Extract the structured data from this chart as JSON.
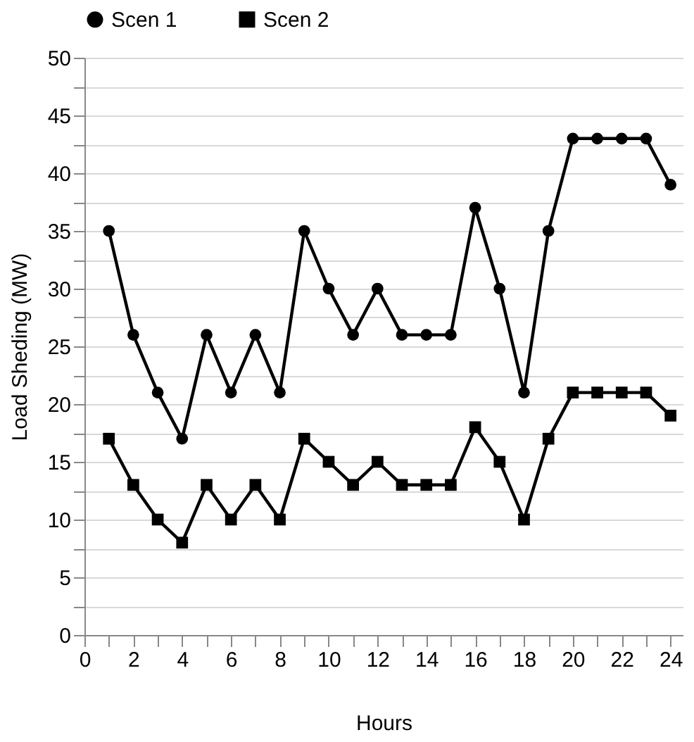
{
  "chart_data": {
    "type": "line",
    "xlabel": "Hours",
    "ylabel": "Load  Sheding (MW)",
    "x": [
      1,
      2,
      3,
      4,
      5,
      6,
      7,
      8,
      9,
      10,
      11,
      12,
      13,
      14,
      15,
      16,
      17,
      18,
      19,
      20,
      21,
      22,
      23,
      24
    ],
    "series": [
      {
        "name": "Scen 1",
        "color": "#000000",
        "marker": "circle",
        "values": [
          35,
          26,
          21,
          17,
          26,
          21,
          26,
          21,
          35,
          30,
          26,
          30,
          26,
          26,
          26,
          37,
          30,
          21,
          35,
          43,
          43,
          43,
          43,
          39
        ]
      },
      {
        "name": "Scen 2",
        "color": "#000000",
        "marker": "square",
        "values": [
          17,
          13,
          10,
          8,
          13,
          10,
          13,
          10,
          17,
          15,
          13,
          15,
          13,
          13,
          13,
          18,
          15,
          10,
          17,
          21,
          21,
          21,
          21,
          19
        ]
      }
    ],
    "xlim": [
      0,
      24.5
    ],
    "xticks": [
      0,
      {
        "value": 1,
        "label": null
      },
      2,
      {
        "value": 3,
        "label": null
      },
      4,
      {
        "value": 5,
        "label": null
      },
      6,
      {
        "value": 7,
        "label": null
      },
      8,
      {
        "value": 9,
        "label": null
      },
      10,
      {
        "value": 11,
        "label": null
      },
      12,
      {
        "value": 13,
        "label": null
      },
      14,
      {
        "value": 15,
        "label": null
      },
      16,
      {
        "value": 17,
        "label": null
      },
      18,
      {
        "value": 19,
        "label": null
      },
      20,
      {
        "value": 21,
        "label": null
      },
      22,
      {
        "value": 23,
        "label": null
      },
      24
    ],
    "ylim": [
      0,
      50
    ],
    "yticks": [
      0,
      {
        "value": 2.5,
        "label": null
      },
      5,
      {
        "value": 7.5,
        "label": null
      },
      10,
      {
        "value": 12.5,
        "label": null
      },
      15,
      {
        "value": 17.5,
        "label": null
      },
      20,
      {
        "value": 22.5,
        "label": null
      },
      25,
      {
        "value": 27.5,
        "label": null
      },
      30,
      {
        "value": 32.5,
        "label": null
      },
      35,
      {
        "value": 37.5,
        "label": null
      },
      40,
      {
        "value": 42.5,
        "label": null
      },
      45,
      {
        "value": 47.5,
        "label": null
      },
      50
    ],
    "grid": "y",
    "legend": "top",
    "line_style": "solid"
  }
}
